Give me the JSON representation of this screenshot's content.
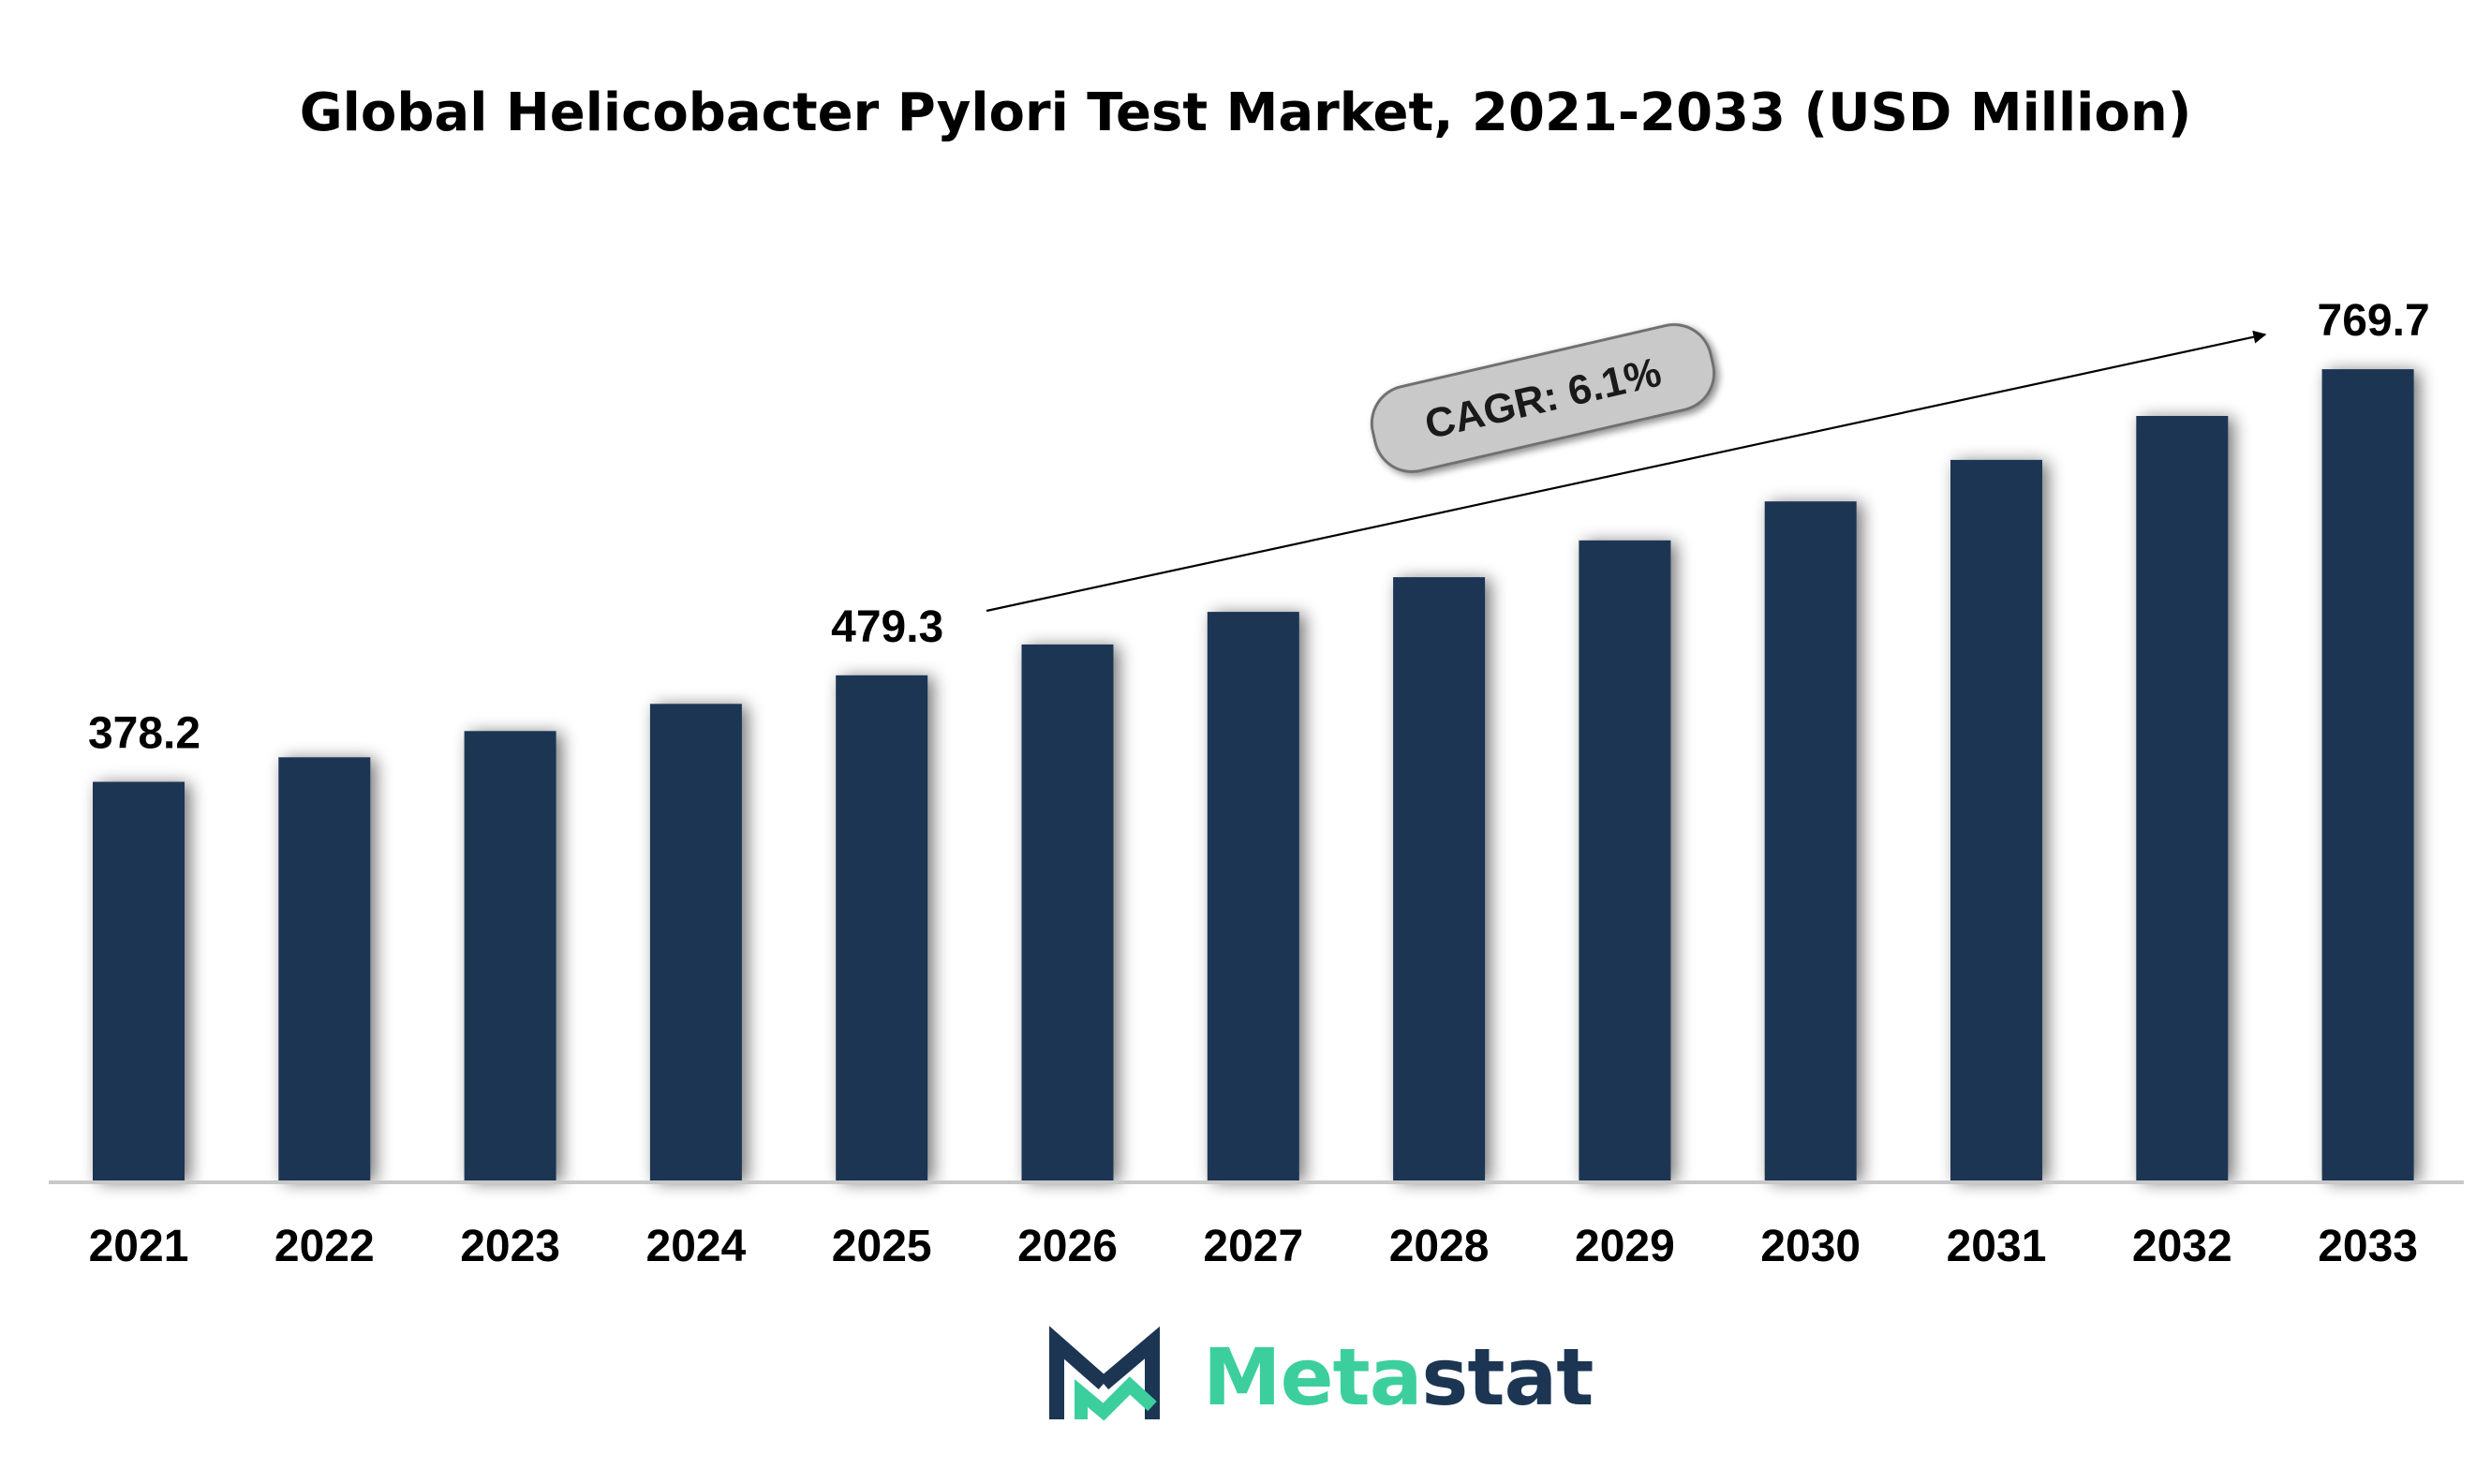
{
  "title": "Global Helicobacter Pylori Test Market, 2021-2033 (USD Million)",
  "colors": {
    "bar": "#1c3553",
    "axis": "#c8c8c8",
    "cagr_box_fill": "#c9c9c9",
    "cagr_box_stroke": "#6f6f6f",
    "logo_accent": "#3ccf9d",
    "logo_dark": "#1c3553"
  },
  "cagr": {
    "label": "CAGR: 6.1%"
  },
  "logo": {
    "part1": "Meta",
    "part2": "stat",
    "icon": "metastat-m-logo-icon"
  },
  "chart_data": {
    "type": "bar",
    "title": "Global Helicobacter Pylori Test Market, 2021-2033 (USD Million)",
    "xlabel": "",
    "ylabel": "",
    "categories": [
      "2021",
      "2022",
      "2023",
      "2024",
      "2025",
      "2026",
      "2027",
      "2028",
      "2029",
      "2030",
      "2031",
      "2032",
      "2033"
    ],
    "values": [
      378.2,
      401.5,
      426.4,
      452.2,
      479.3,
      508.5,
      539.5,
      572.4,
      607.3,
      644.3,
      683.6,
      725.3,
      769.7
    ],
    "data_labels": [
      {
        "category": "2021",
        "text": "378.2"
      },
      {
        "category": "2025",
        "text": "479.3"
      },
      {
        "category": "2033",
        "text": "769.7"
      }
    ],
    "ylim": [
      0,
      800
    ],
    "grid": false,
    "legend": "none"
  }
}
